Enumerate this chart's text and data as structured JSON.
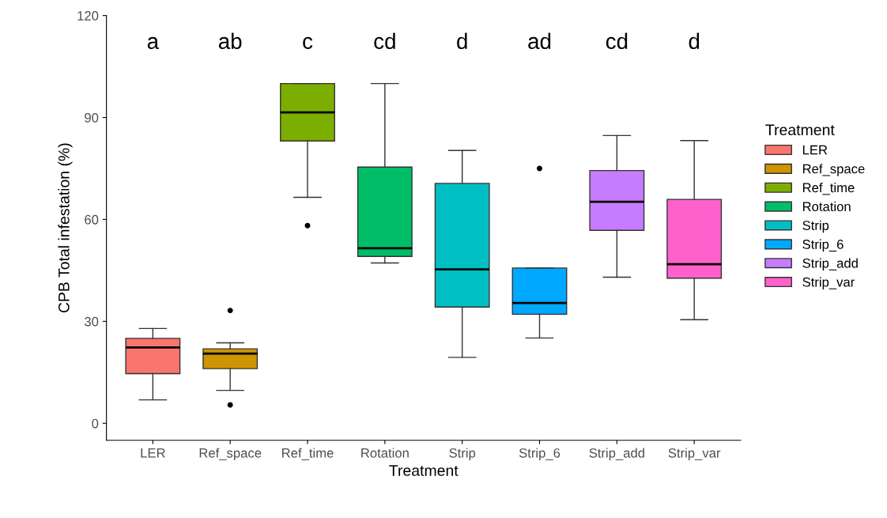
{
  "chart_data": {
    "type": "box",
    "xlabel": "Treatment",
    "ylabel": "CPB Total infestation (%)",
    "legend_title": "Treatment",
    "legend": "right",
    "grid": false,
    "categories": [
      "LER",
      "Ref_space",
      "Ref_time",
      "Rotation",
      "Strip",
      "Strip_6",
      "Strip_add",
      "Strip_var"
    ],
    "series": [
      {
        "name": "LER",
        "color": "#f8766d",
        "boxes": [
          {
            "low": 6.9,
            "q1": 14.6,
            "median": 22.3,
            "q3": 25.0,
            "high": 27.9
          },
          null,
          null,
          null,
          null,
          null,
          null,
          null
        ]
      },
      {
        "name": "Ref_space",
        "color": "#cd9600",
        "boxes": [
          null,
          {
            "low": 9.7,
            "q1": 16.1,
            "median": 20.5,
            "q3": 21.9,
            "high": 23.7,
            "outliers": [
              33.2,
              5.4
            ]
          },
          null,
          null,
          null,
          null,
          null,
          null
        ]
      },
      {
        "name": "Ref_time",
        "color": "#7cae00",
        "boxes": [
          null,
          null,
          {
            "low": 66.5,
            "q1": 83.1,
            "median": 91.5,
            "q3": 100,
            "high": 100,
            "outliers": [
              58.2
            ]
          },
          null,
          null,
          null,
          null,
          null
        ]
      },
      {
        "name": "Rotation",
        "color": "#00be67",
        "boxes": [
          null,
          null,
          null,
          {
            "low": 47.2,
            "q1": 49.1,
            "median": 51.5,
            "q3": 75.4,
            "high": 100
          },
          null,
          null,
          null,
          null
        ]
      },
      {
        "name": "Strip",
        "color": "#00bfc4",
        "boxes": [
          null,
          null,
          null,
          null,
          {
            "low": 19.4,
            "q1": 34.2,
            "median": 45.3,
            "q3": 70.6,
            "high": 80.3
          },
          null,
          null,
          null
        ]
      },
      {
        "name": "Strip_6",
        "color": "#00a9ff",
        "boxes": [
          null,
          null,
          null,
          null,
          null,
          {
            "low": 25.1,
            "q1": 32.1,
            "median": 35.4,
            "q3": 45.7,
            "high": 45.7,
            "outliers": [
              75.0
            ]
          },
          null,
          null
        ]
      },
      {
        "name": "Strip_add",
        "color": "#c77cff",
        "boxes": [
          null,
          null,
          null,
          null,
          null,
          null,
          {
            "low": 43.0,
            "q1": 56.8,
            "median": 65.2,
            "q3": 74.4,
            "high": 84.7
          },
          null
        ]
      },
      {
        "name": "Strip_var",
        "color": "#ff61cc",
        "boxes": [
          null,
          null,
          null,
          null,
          null,
          null,
          null,
          {
            "low": 30.5,
            "q1": 42.7,
            "median": 46.8,
            "q3": 65.9,
            "high": 83.2
          }
        ]
      }
    ],
    "ylim": [
      -5,
      120
    ],
    "yticks": [
      0,
      30,
      60,
      90,
      120
    ],
    "annotations": [
      "a",
      "ab",
      "c",
      "cd",
      "d",
      "ad",
      "cd",
      "d"
    ]
  }
}
